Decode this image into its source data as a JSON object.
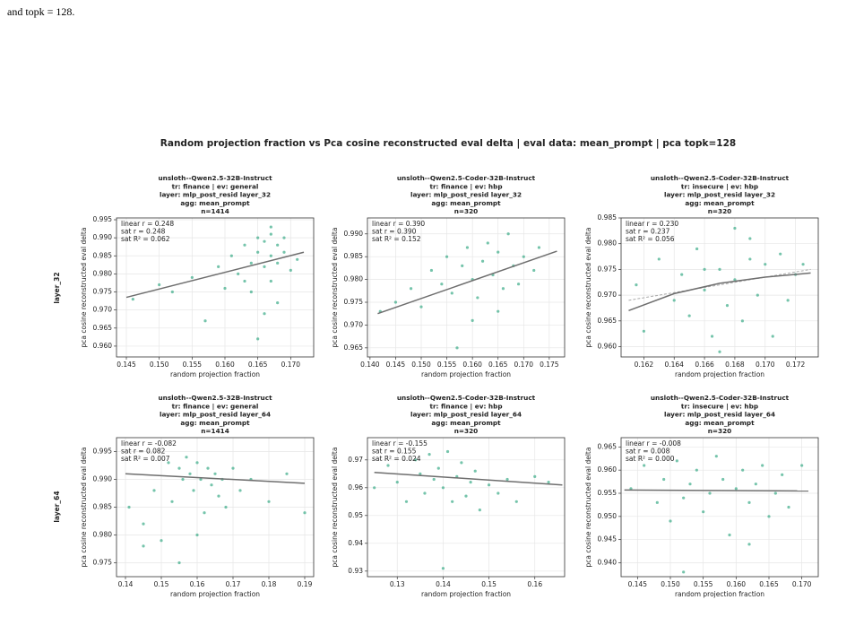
{
  "page_text": "and topk = 128.",
  "figure_title": "Random projection fraction vs Pca cosine reconstructed eval delta | eval data: mean_prompt | pca topk=128",
  "row_labels": [
    "layer_32",
    "layer_64"
  ],
  "chart_data": [
    {
      "type": "scatter",
      "title": [
        "unsloth--Qwen2.5-32B-Instruct",
        "tr: finance | ev: general",
        "layer: mlp_post_resid layer_32",
        "agg: mean_prompt",
        "n=1414"
      ],
      "annotations": [
        "linear r = 0.248",
        "sat r = 0.248",
        "sat R² = 0.062"
      ],
      "xlabel": "random projection fraction",
      "ylabel": "pca cosine reconstructed eval delta",
      "color": "#3aab87",
      "grid": true,
      "xlim": [
        0.1435,
        0.1735
      ],
      "ylim": [
        0.957,
        0.9955
      ],
      "xticks": [
        0.145,
        {
          "value": 0.15,
          "label": "0.150"
        },
        0.155,
        {
          "value": 0.16,
          "label": "0.160"
        },
        0.165,
        {
          "value": 0.17,
          "label": "0.170"
        }
      ],
      "yticks": [
        {
          "value": 0.96,
          "label": "0.960"
        },
        0.965,
        {
          "value": 0.97,
          "label": "0.970"
        },
        0.975,
        {
          "value": 0.98,
          "label": "0.980"
        },
        0.985,
        {
          "value": 0.99,
          "label": "0.990"
        },
        0.995
      ],
      "x": [
        0.146,
        0.15,
        0.152,
        0.155,
        0.157,
        0.159,
        0.16,
        0.161,
        0.162,
        0.163,
        0.164,
        0.164,
        0.165,
        0.165,
        0.166,
        0.166,
        0.167,
        0.167,
        0.167,
        0.168,
        0.168,
        0.168,
        0.169,
        0.169,
        0.17,
        0.166,
        0.163,
        0.165,
        0.167,
        0.171
      ],
      "y": [
        0.973,
        0.977,
        0.975,
        0.979,
        0.967,
        0.982,
        0.976,
        0.985,
        0.98,
        0.988,
        0.983,
        0.975,
        0.99,
        0.986,
        0.982,
        0.989,
        0.991,
        0.985,
        0.978,
        0.988,
        0.983,
        0.972,
        0.99,
        0.986,
        0.981,
        0.969,
        0.978,
        0.962,
        0.993,
        0.984
      ],
      "fits": [
        {
          "style": "solid",
          "x": [
            0.145,
            0.172
          ],
          "y": [
            0.9735,
            0.986
          ]
        }
      ]
    },
    {
      "type": "scatter",
      "title": [
        "unsloth--Qwen2.5-Coder-32B-Instruct",
        "tr: finance | ev: hbp",
        "layer: mlp_post_resid layer_32",
        "agg: mean_prompt",
        "n=320"
      ],
      "annotations": [
        "linear r = 0.390",
        "sat r = 0.390",
        "sat R² = 0.152"
      ],
      "xlabel": "random projection fraction",
      "ylabel": "pca cosine reconstructed eval delta",
      "color": "#3aab87",
      "grid": true,
      "xlim": [
        0.1395,
        0.178
      ],
      "ylim": [
        0.963,
        0.9935
      ],
      "xticks": [
        {
          "value": 0.14,
          "label": "0.140"
        },
        0.145,
        {
          "value": 0.15,
          "label": "0.150"
        },
        0.155,
        {
          "value": 0.16,
          "label": "0.160"
        },
        0.165,
        {
          "value": 0.17,
          "label": "0.170"
        },
        0.175
      ],
      "yticks": [
        0.965,
        {
          "value": 0.97,
          "label": "0.970"
        },
        0.975,
        {
          "value": 0.98,
          "label": "0.980"
        },
        0.985,
        {
          "value": 0.99,
          "label": "0.990"
        }
      ],
      "x": [
        0.142,
        0.145,
        0.148,
        0.15,
        0.152,
        0.154,
        0.155,
        0.156,
        0.158,
        0.159,
        0.16,
        0.161,
        0.162,
        0.163,
        0.164,
        0.165,
        0.166,
        0.167,
        0.168,
        0.169,
        0.17,
        0.172,
        0.173,
        0.16,
        0.165,
        0.157
      ],
      "y": [
        0.973,
        0.975,
        0.978,
        0.974,
        0.982,
        0.979,
        0.985,
        0.977,
        0.983,
        0.987,
        0.98,
        0.976,
        0.984,
        0.988,
        0.981,
        0.986,
        0.978,
        0.99,
        0.983,
        0.979,
        0.985,
        0.982,
        0.987,
        0.971,
        0.973,
        0.965
      ],
      "fits": [
        {
          "style": "solid",
          "x": [
            0.1415,
            0.1765
          ],
          "y": [
            0.9725,
            0.9862
          ]
        }
      ]
    },
    {
      "type": "scatter",
      "title": [
        "unsloth--Qwen2.5-Coder-32B-Instruct",
        "tr: insecure | ev: hbp",
        "layer: mlp_post_resid layer_32",
        "agg: mean_prompt",
        "n=320"
      ],
      "annotations": [
        "linear r = 0.230",
        "sat r = 0.237",
        "sat R² = 0.056"
      ],
      "xlabel": "random projection fraction",
      "ylabel": "pca cosine reconstructed eval delta",
      "color": "#3aab87",
      "grid": true,
      "xlim": [
        0.1605,
        0.1735
      ],
      "ylim": [
        0.958,
        0.985
      ],
      "xticks": [
        0.162,
        0.164,
        0.166,
        0.168,
        {
          "value": 0.17,
          "label": "0.170"
        },
        0.172
      ],
      "yticks": [
        {
          "value": 0.96,
          "label": "0.960"
        },
        0.965,
        {
          "value": 0.97,
          "label": "0.970"
        },
        0.975,
        {
          "value": 0.98,
          "label": "0.980"
        },
        0.985
      ],
      "x": [
        0.1615,
        0.162,
        0.163,
        0.164,
        0.1645,
        0.165,
        0.1655,
        0.166,
        0.1665,
        0.167,
        0.1675,
        0.168,
        0.168,
        0.1685,
        0.169,
        0.1695,
        0.17,
        0.1705,
        0.171,
        0.1715,
        0.172,
        0.1725,
        0.167,
        0.169,
        0.166
      ],
      "y": [
        0.972,
        0.963,
        0.977,
        0.969,
        0.974,
        0.966,
        0.979,
        0.971,
        0.962,
        0.975,
        0.968,
        0.983,
        0.973,
        0.965,
        0.977,
        0.97,
        0.976,
        0.962,
        0.978,
        0.969,
        0.974,
        0.976,
        0.959,
        0.981,
        0.975
      ],
      "fits": [
        {
          "style": "dashed",
          "x": [
            0.161,
            0.173
          ],
          "y": [
            0.969,
            0.975
          ]
        },
        {
          "style": "solid",
          "x": [
            0.161,
            0.164,
            0.167,
            0.17,
            0.173
          ],
          "y": [
            0.967,
            0.9703,
            0.9723,
            0.9735,
            0.9743
          ]
        }
      ]
    },
    {
      "type": "scatter",
      "title": [
        "unsloth--Qwen2.5-32B-Instruct",
        "tr: finance | ev: general",
        "layer: mlp_post_resid layer_64",
        "agg: mean_prompt",
        "n=1414"
      ],
      "annotations": [
        "linear r = -0.082",
        "sat r = 0.082",
        "sat R² = 0.007"
      ],
      "xlabel": "random projection fraction",
      "ylabel": "pca cosine reconstructed eval delta",
      "color": "#3aab87",
      "grid": true,
      "xlim": [
        0.1375,
        0.1925
      ],
      "ylim": [
        0.9725,
        0.9975
      ],
      "xticks": [
        0.14,
        0.15,
        0.16,
        0.17,
        0.18,
        0.19
      ],
      "yticks": [
        0.975,
        {
          "value": 0.98,
          "label": "0.980"
        },
        0.985,
        {
          "value": 0.99,
          "label": "0.990"
        },
        0.995
      ],
      "x": [
        0.141,
        0.145,
        0.148,
        0.15,
        0.152,
        0.153,
        0.155,
        0.156,
        0.157,
        0.158,
        0.159,
        0.16,
        0.161,
        0.162,
        0.163,
        0.164,
        0.165,
        0.166,
        0.167,
        0.168,
        0.17,
        0.172,
        0.175,
        0.18,
        0.185,
        0.19,
        0.155,
        0.16,
        0.145
      ],
      "y": [
        0.985,
        0.982,
        0.988,
        0.979,
        0.993,
        0.986,
        0.992,
        0.99,
        0.994,
        0.991,
        0.988,
        0.993,
        0.99,
        0.984,
        0.992,
        0.989,
        0.991,
        0.987,
        0.99,
        0.985,
        0.992,
        0.988,
        0.99,
        0.986,
        0.991,
        0.984,
        0.975,
        0.98,
        0.978
      ],
      "fits": [
        {
          "style": "solid",
          "x": [
            0.14,
            0.19
          ],
          "y": [
            0.991,
            0.9893
          ]
        }
      ]
    },
    {
      "type": "scatter",
      "title": [
        "unsloth--Qwen2.5-Coder-32B-Instruct",
        "tr: finance | ev: hbp",
        "layer: mlp_post_resid layer_64",
        "agg: mean_prompt",
        "n=320"
      ],
      "annotations": [
        "linear r = -0.155",
        "sat r = 0.155",
        "sat R² = 0.024"
      ],
      "xlabel": "random projection fraction",
      "ylabel": "pca cosine reconstructed eval delta",
      "color": "#3aab87",
      "grid": true,
      "xlim": [
        0.1235,
        0.1665
      ],
      "ylim": [
        0.928,
        0.978
      ],
      "xticks": [
        0.13,
        0.14,
        0.15,
        0.16
      ],
      "yticks": [
        0.93,
        0.94,
        0.95,
        0.96,
        0.97
      ],
      "x": [
        0.125,
        0.128,
        0.13,
        0.132,
        0.134,
        0.135,
        0.136,
        0.137,
        0.138,
        0.139,
        0.14,
        0.141,
        0.142,
        0.143,
        0.144,
        0.145,
        0.146,
        0.147,
        0.148,
        0.15,
        0.152,
        0.154,
        0.156,
        0.16,
        0.163,
        0.14
      ],
      "y": [
        0.96,
        0.968,
        0.962,
        0.955,
        0.97,
        0.965,
        0.958,
        0.972,
        0.963,
        0.967,
        0.96,
        0.973,
        0.955,
        0.964,
        0.969,
        0.957,
        0.962,
        0.966,
        0.952,
        0.961,
        0.958,
        0.963,
        0.955,
        0.964,
        0.962,
        0.931
      ],
      "fits": [
        {
          "style": "solid",
          "x": [
            0.125,
            0.166
          ],
          "y": [
            0.9655,
            0.961
          ]
        }
      ]
    },
    {
      "type": "scatter",
      "title": [
        "unsloth--Qwen2.5-Coder-32B-Instruct",
        "tr: insecure | ev: hbp",
        "layer: mlp_post_resid layer_64",
        "agg: mean_prompt",
        "n=320"
      ],
      "annotations": [
        "linear r = -0.008",
        "sat r = 0.008",
        "sat R² = 0.000"
      ],
      "xlabel": "random projection fraction",
      "ylabel": "pca cosine reconstructed eval delta",
      "color": "#3aab87",
      "grid": true,
      "xlim": [
        0.1425,
        0.1725
      ],
      "ylim": [
        0.937,
        0.967
      ],
      "xticks": [
        0.145,
        {
          "value": 0.15,
          "label": "0.150"
        },
        0.155,
        {
          "value": 0.16,
          "label": "0.160"
        },
        0.165,
        {
          "value": 0.17,
          "label": "0.170"
        }
      ],
      "yticks": [
        {
          "value": 0.94,
          "label": "0.940"
        },
        0.945,
        {
          "value": 0.95,
          "label": "0.950"
        },
        0.955,
        {
          "value": 0.96,
          "label": "0.960"
        },
        0.965
      ],
      "x": [
        0.144,
        0.146,
        0.148,
        0.149,
        0.15,
        0.151,
        0.152,
        0.153,
        0.154,
        0.155,
        0.156,
        0.157,
        0.158,
        0.159,
        0.16,
        0.161,
        0.162,
        0.163,
        0.164,
        0.165,
        0.166,
        0.167,
        0.168,
        0.17,
        0.152,
        0.162
      ],
      "y": [
        0.956,
        0.961,
        0.953,
        0.958,
        0.949,
        0.962,
        0.954,
        0.957,
        0.96,
        0.951,
        0.955,
        0.963,
        0.958,
        0.946,
        0.956,
        0.96,
        0.953,
        0.957,
        0.961,
        0.95,
        0.955,
        0.959,
        0.952,
        0.961,
        0.938,
        0.944
      ],
      "fits": [
        {
          "style": "solid",
          "x": [
            0.143,
            0.171
          ],
          "y": [
            0.9557,
            0.9555
          ]
        }
      ]
    }
  ]
}
